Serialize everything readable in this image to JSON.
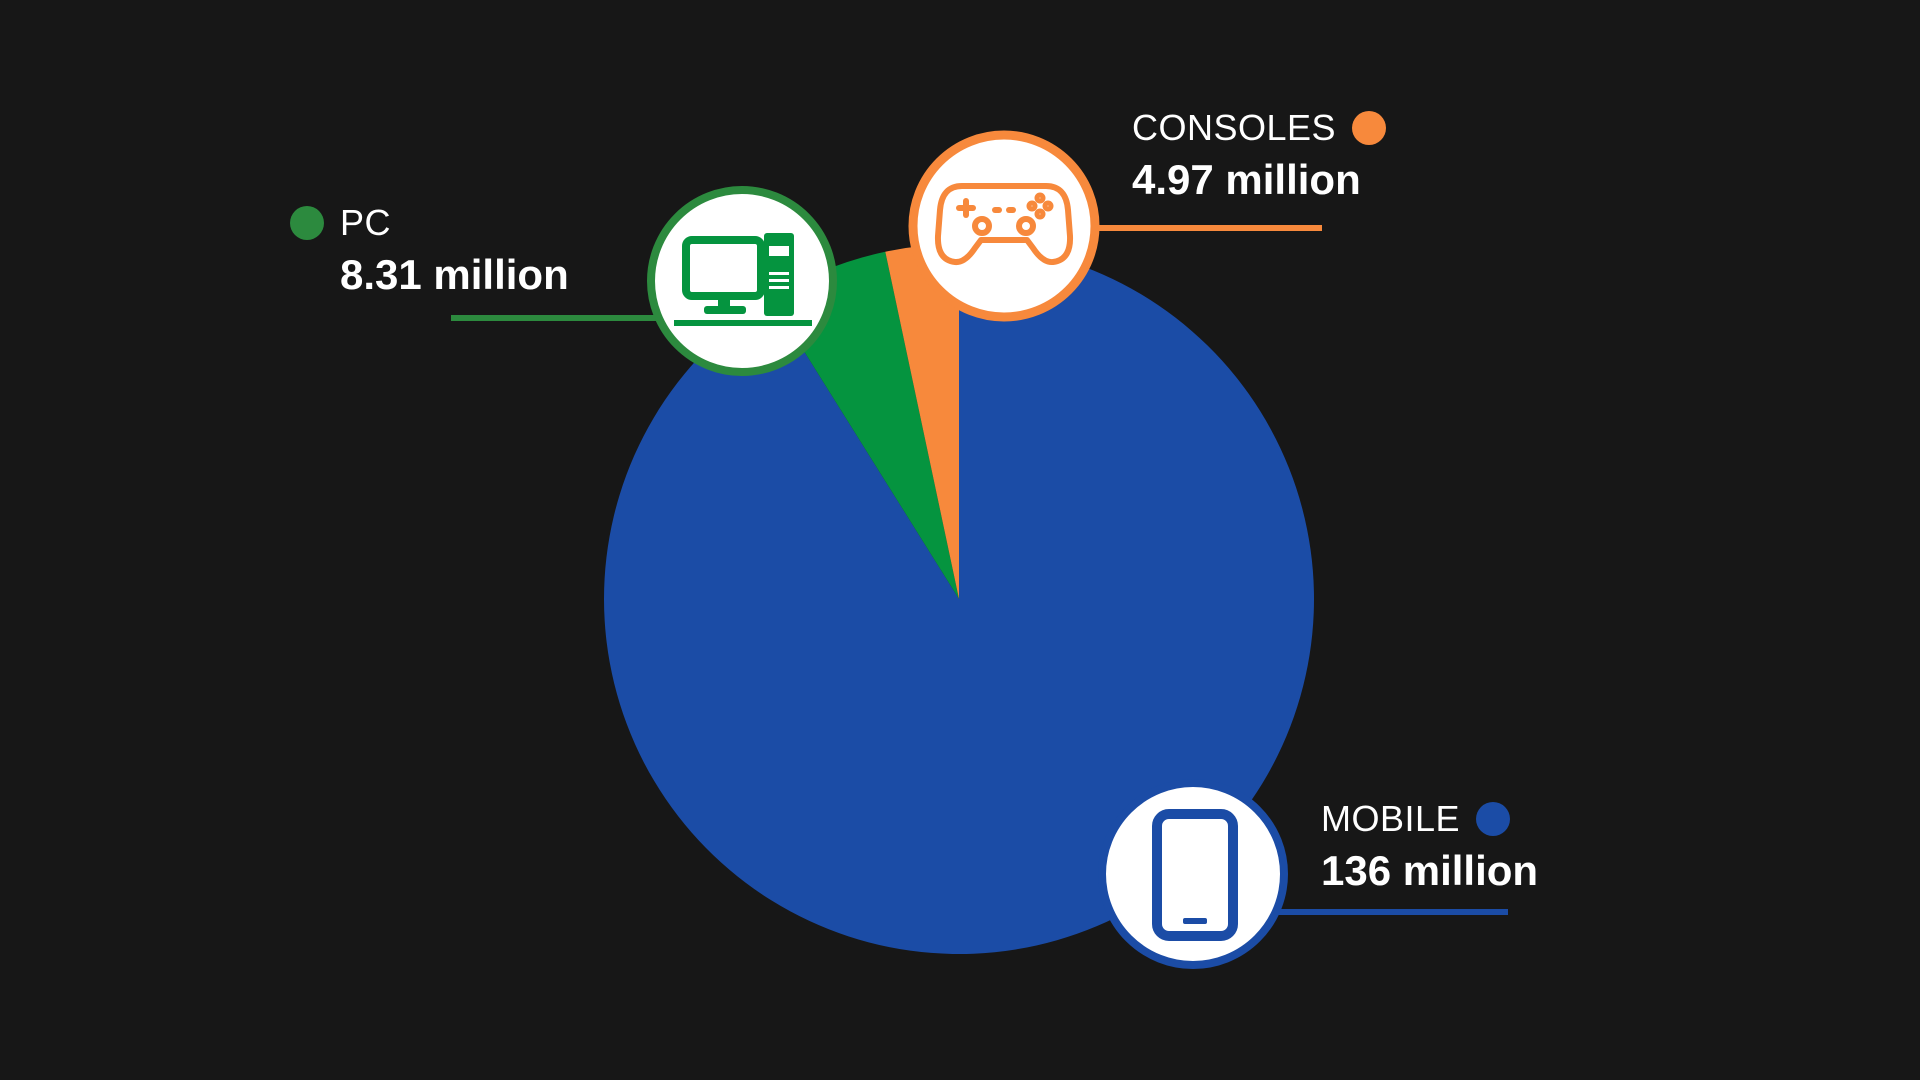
{
  "chart_data": {
    "type": "pie",
    "unit": "million",
    "slices": [
      {
        "label": "MOBILE",
        "value": 136,
        "value_label": "136 million",
        "color": "#1b4ca6",
        "icon": "smartphone-icon"
      },
      {
        "label": "PC",
        "value": 8.31,
        "value_label": "8.31 million",
        "color": "#05943f",
        "icon": "desktop-computer-icon"
      },
      {
        "label": "CONSOLES",
        "value": 4.97,
        "value_label": "4.97 million",
        "color": "#f7893c",
        "icon": "gamepad-icon"
      }
    ],
    "legend": "callouts"
  },
  "colors": {
    "background": "#171717",
    "mobile": "#1b4ca6",
    "pc": "#05943f",
    "pc_accent": "#2c8a3e",
    "consoles": "#f7893c"
  }
}
